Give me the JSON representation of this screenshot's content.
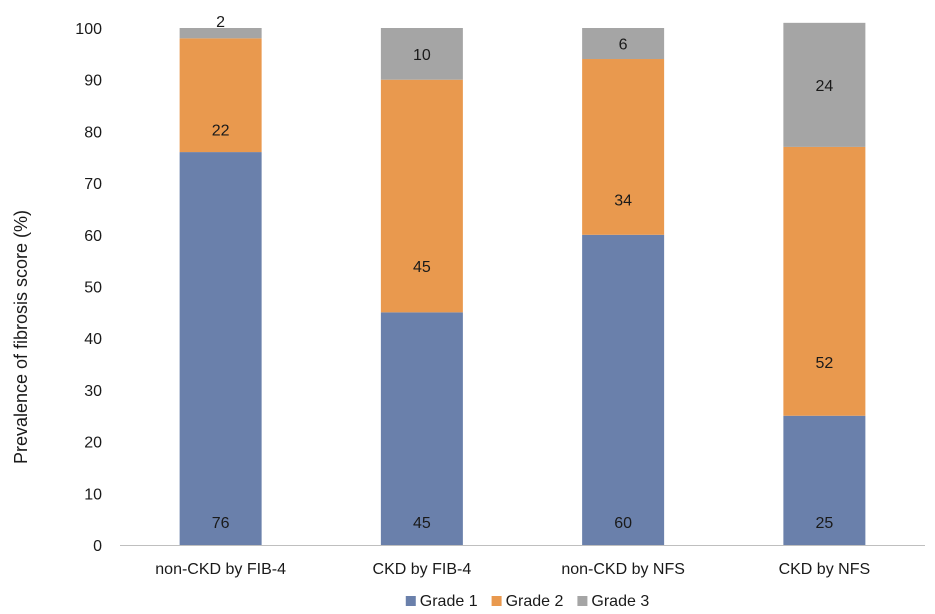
{
  "chart_data": {
    "type": "bar",
    "stacked": true,
    "title": "",
    "xlabel": "",
    "ylabel": "Prevalence of fibrosis score (%)",
    "ylim": [
      0,
      100
    ],
    "yticks": [
      0,
      10,
      20,
      30,
      40,
      50,
      60,
      70,
      80,
      90,
      100
    ],
    "grid": false,
    "legend_position": "bottom",
    "categories": [
      "non-CKD by FIB-4",
      "CKD by FIB-4",
      "non-CKD by NFS",
      "CKD by NFS"
    ],
    "series": [
      {
        "name": "Grade 1",
        "color": "#6a80ab",
        "values": [
          76,
          45,
          60,
          25
        ],
        "labels": [
          "76",
          "45",
          "60",
          "25"
        ]
      },
      {
        "name": "Grade 2",
        "color": "#e9994e",
        "values": [
          22,
          45,
          34,
          52
        ],
        "labels": [
          "22",
          "45",
          "34",
          "52"
        ]
      },
      {
        "name": "Grade 3",
        "color": "#a5a5a5",
        "values": [
          2,
          10,
          6,
          24
        ],
        "labels": [
          "2",
          "10",
          "6",
          "24"
        ]
      }
    ]
  }
}
